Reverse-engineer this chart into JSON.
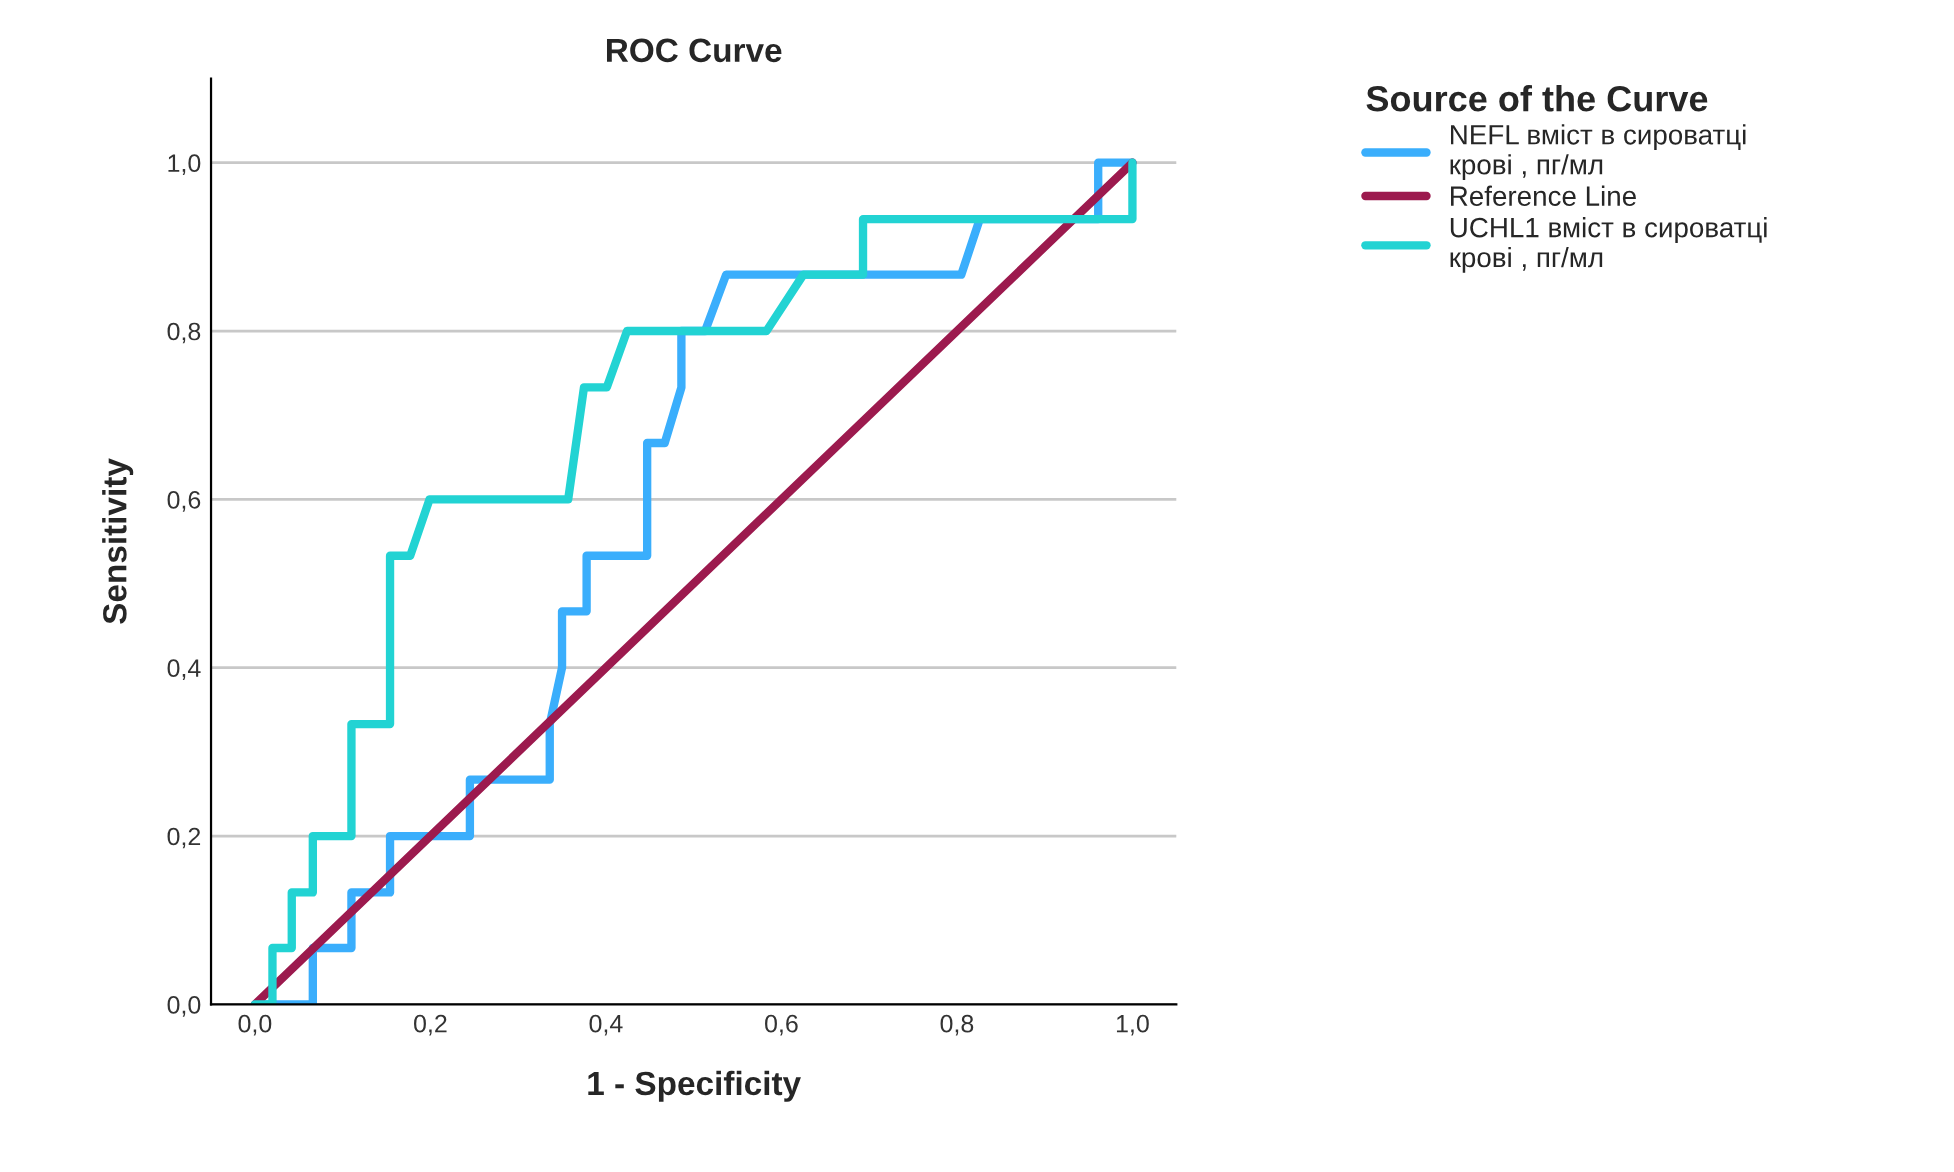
{
  "chart_data": {
    "type": "line",
    "title": "ROC Curve",
    "xlabel": "1 - Specificity",
    "ylabel": "Sensitivity",
    "legend_title": "Source of the Curve",
    "xlim": [
      -0.05,
      1.05
    ],
    "ylim": [
      0,
      1.1
    ],
    "xticks": [
      {
        "value": 0,
        "label": "0,0"
      },
      {
        "value": 0.2,
        "label": "0,2"
      },
      {
        "value": 0.4,
        "label": "0,4"
      },
      {
        "value": 0.6,
        "label": "0,6"
      },
      {
        "value": 0.8,
        "label": "0,8"
      },
      {
        "value": 1.0,
        "label": "1,0"
      }
    ],
    "yticks": [
      {
        "value": 0,
        "label": "0,0"
      },
      {
        "value": 0.2,
        "label": "0,2"
      },
      {
        "value": 0.4,
        "label": "0,4"
      },
      {
        "value": 0.6,
        "label": "0,6"
      },
      {
        "value": 0.8,
        "label": "0,8"
      },
      {
        "value": 1.0,
        "label": "1,0"
      }
    ],
    "grid": "y",
    "legend": "top right",
    "marker": "none",
    "line_style": "solid",
    "series": [
      {
        "name": "NEFL вміст в сироватці\nкрові , пг/мл",
        "color": "#3aaefc",
        "x": [
          0,
          0.066,
          0.066,
          0.11,
          0.11,
          0.154,
          0.154,
          0.245,
          0.245,
          0.336,
          0.336,
          0.35,
          0.35,
          0.378,
          0.378,
          0.447,
          0.447,
          0.467,
          0.486,
          0.486,
          0.513,
          0.537,
          0.805,
          0.826,
          0.961,
          0.961,
          1.0
        ],
        "values": [
          0,
          0,
          0.067,
          0.067,
          0.133,
          0.133,
          0.2,
          0.2,
          0.267,
          0.267,
          0.333,
          0.4,
          0.467,
          0.467,
          0.533,
          0.533,
          0.667,
          0.667,
          0.733,
          0.8,
          0.8,
          0.867,
          0.867,
          0.933,
          0.933,
          1.0,
          1.0
        ]
      },
      {
        "name": "Reference Line",
        "color": "#9c1a4e",
        "x": [
          0,
          1.0
        ],
        "values": [
          0,
          1.0
        ]
      },
      {
        "name": "UCHL1 вміст в сироватці\nкрові , пг/мл",
        "color": "#22d3d3",
        "x": [
          0,
          0.02,
          0.02,
          0.042,
          0.042,
          0.066,
          0.066,
          0.11,
          0.11,
          0.154,
          0.154,
          0.177,
          0.199,
          0.357,
          0.375,
          0.401,
          0.424,
          0.583,
          0.625,
          0.693,
          0.693,
          1.0,
          1.0
        ],
        "values": [
          0,
          0,
          0.067,
          0.067,
          0.133,
          0.133,
          0.2,
          0.2,
          0.333,
          0.333,
          0.533,
          0.533,
          0.6,
          0.6,
          0.733,
          0.733,
          0.8,
          0.8,
          0.867,
          0.867,
          0.933,
          0.933,
          1.0
        ]
      }
    ]
  }
}
